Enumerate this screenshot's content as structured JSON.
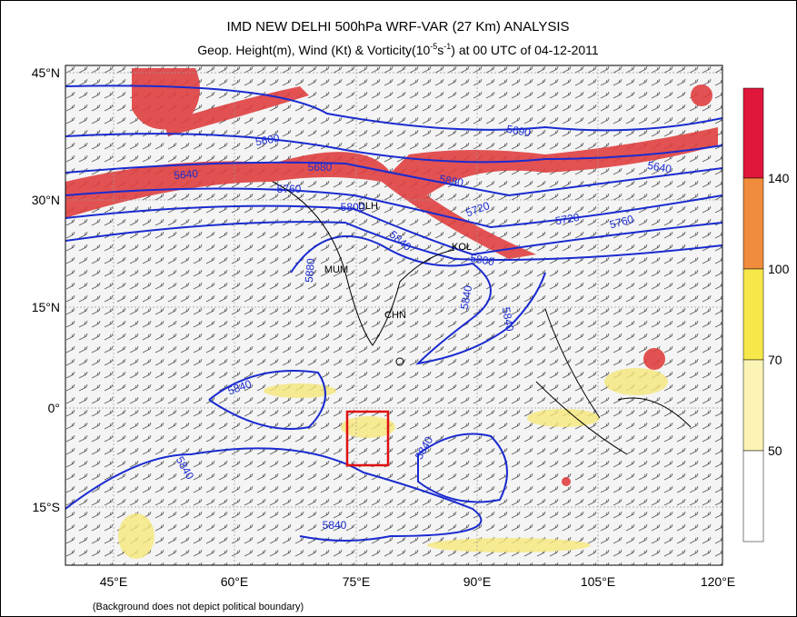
{
  "header": {
    "title": "IMD NEW DELHI 500hPa WRF-VAR (27 Km) ANALYSIS",
    "subtitle": {
      "pre": "Geop. Height(m), Wind (Kt) & Vorticity(10",
      "exp1": "-5",
      "unit": "s",
      "exp2": "-1",
      "post": ") at 00 UTC of 04-12-2011"
    }
  },
  "map": {
    "lat_labels": [
      "45°N",
      "30°N",
      "15°N",
      "0°",
      "15°S"
    ],
    "lon_labels": [
      "45°E",
      "60°E",
      "75°E",
      "90°E",
      "105°E",
      "120°E"
    ],
    "stations": [
      "DLH",
      "KOL",
      "MUM",
      "CHN"
    ],
    "contour_labels": [
      "5600",
      "5680",
      "5640",
      "5760",
      "5800",
      "5840",
      "5880",
      "5720",
      "5690",
      "5640",
      "5720",
      "5760",
      "5800",
      "5840",
      "5840",
      "5840",
      "5840",
      "5840",
      "5840",
      "5880"
    ]
  },
  "colorbar": {
    "labels": [
      "140",
      "100",
      "70",
      "50"
    ]
  },
  "footnote": "(Background does not depict political boundary)"
}
